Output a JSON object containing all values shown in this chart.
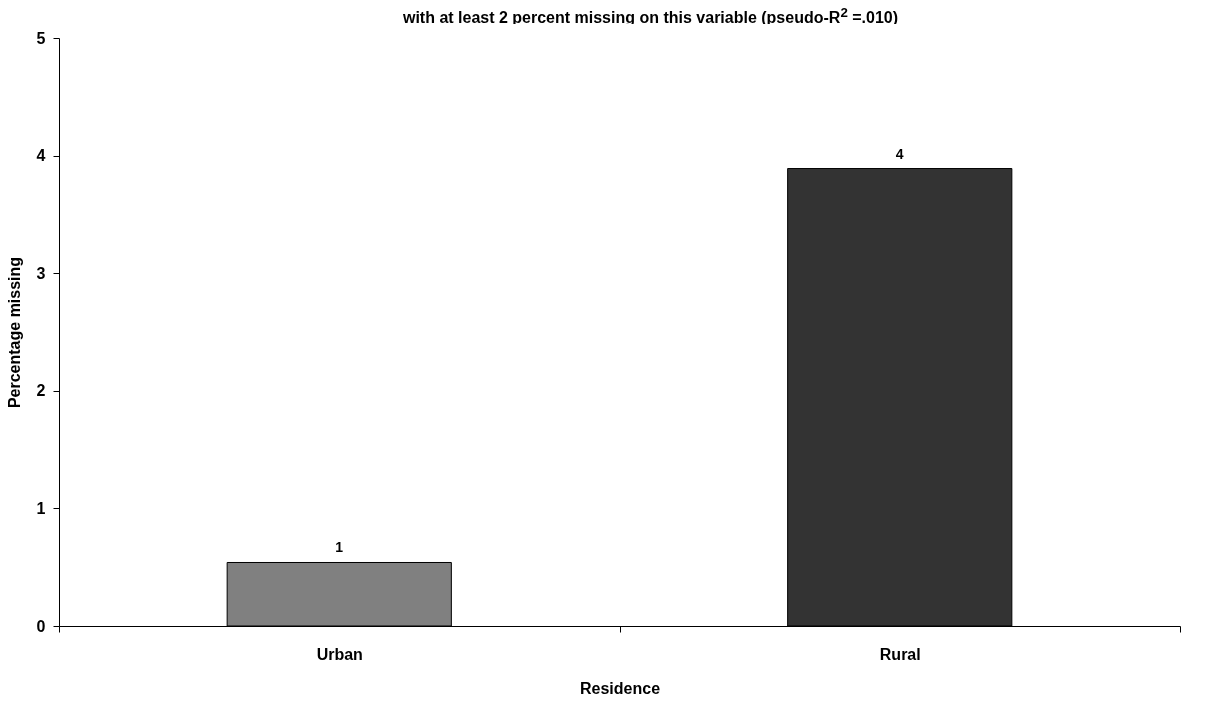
{
  "chart_data": {
    "type": "bar",
    "title": "with at least 2 percent missing on this variable (pseudo-R$^{2}$ =.010)",
    "xlabel": "Residence",
    "ylabel": "Percentage missing",
    "categories": [
      "Urban",
      "Rural"
    ],
    "values": [
      0.54,
      3.89
    ],
    "colors": [
      "#808080",
      "#333333"
    ],
    "value_labels": [
      "1",
      "4"
    ],
    "ylim": [
      0,
      5
    ],
    "yticks": [
      0,
      1,
      2,
      3,
      4,
      5
    ],
    "grid": false
  }
}
